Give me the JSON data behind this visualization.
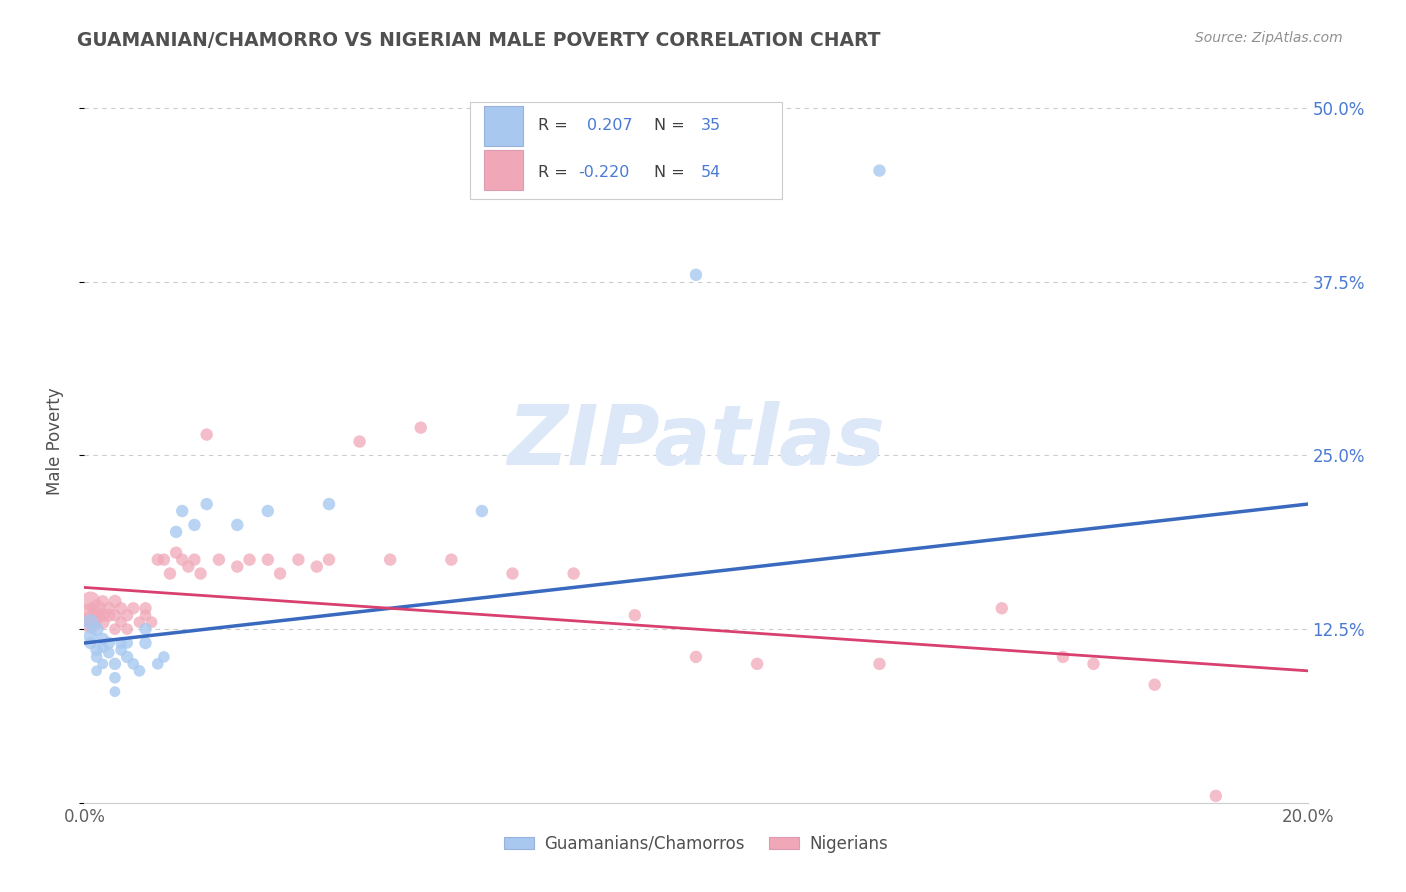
{
  "title": "GUAMANIAN/CHAMORRO VS NIGERIAN MALE POVERTY CORRELATION CHART",
  "source": "Source: ZipAtlas.com",
  "ylabel": "Male Poverty",
  "xlim": [
    0.0,
    0.2
  ],
  "ylim": [
    0.0,
    0.52
  ],
  "yticks": [
    0.0,
    0.125,
    0.25,
    0.375,
    0.5
  ],
  "ytick_labels": [
    "",
    "12.5%",
    "25.0%",
    "37.5%",
    "50.0%"
  ],
  "xticks": [
    0.0,
    0.05,
    0.1,
    0.15,
    0.2
  ],
  "xtick_labels": [
    "0.0%",
    "",
    "",
    "",
    "20.0%"
  ],
  "blue_color": "#a8c8f0",
  "pink_color": "#f0a8b8",
  "line_blue": "#3a6abf",
  "line_pink": "#d94070",
  "legend_text_color": "#4a7ad4",
  "watermark_color": "#dce8f8",
  "grid_color": "#cccccc",
  "background_color": "#ffffff",
  "title_color": "#505050",
  "source_color": "#909090",
  "axis_label_color": "#505050",
  "blue_scatter_x": [
    0.001,
    0.001,
    0.001,
    0.002,
    0.002,
    0.002,
    0.002,
    0.003,
    0.003,
    0.003,
    0.004,
    0.004,
    0.005,
    0.005,
    0.005,
    0.006,
    0.006,
    0.007,
    0.007,
    0.008,
    0.009,
    0.01,
    0.01,
    0.012,
    0.013,
    0.015,
    0.016,
    0.018,
    0.02,
    0.025,
    0.03,
    0.04,
    0.065,
    0.1,
    0.13
  ],
  "blue_scatter_y": [
    0.12,
    0.13,
    0.115,
    0.125,
    0.11,
    0.105,
    0.095,
    0.118,
    0.112,
    0.1,
    0.115,
    0.108,
    0.08,
    0.09,
    0.1,
    0.115,
    0.11,
    0.105,
    0.115,
    0.1,
    0.095,
    0.115,
    0.125,
    0.1,
    0.105,
    0.195,
    0.21,
    0.2,
    0.215,
    0.2,
    0.21,
    0.215,
    0.21,
    0.38,
    0.455
  ],
  "blue_scatter_size": [
    100,
    130,
    80,
    100,
    80,
    70,
    60,
    80,
    70,
    60,
    80,
    70,
    60,
    70,
    80,
    70,
    70,
    80,
    70,
    70,
    70,
    80,
    80,
    70,
    70,
    80,
    80,
    80,
    80,
    80,
    80,
    80,
    80,
    80,
    80
  ],
  "pink_scatter_x": [
    0.001,
    0.001,
    0.001,
    0.002,
    0.002,
    0.003,
    0.003,
    0.003,
    0.004,
    0.004,
    0.005,
    0.005,
    0.005,
    0.006,
    0.006,
    0.007,
    0.007,
    0.008,
    0.009,
    0.01,
    0.01,
    0.011,
    0.012,
    0.013,
    0.014,
    0.015,
    0.016,
    0.017,
    0.018,
    0.019,
    0.02,
    0.022,
    0.025,
    0.027,
    0.03,
    0.032,
    0.035,
    0.038,
    0.04,
    0.045,
    0.05,
    0.055,
    0.06,
    0.07,
    0.08,
    0.09,
    0.1,
    0.11,
    0.13,
    0.15,
    0.16,
    0.165,
    0.175,
    0.185
  ],
  "pink_scatter_y": [
    0.135,
    0.13,
    0.145,
    0.14,
    0.135,
    0.135,
    0.13,
    0.145,
    0.135,
    0.14,
    0.145,
    0.135,
    0.125,
    0.14,
    0.13,
    0.135,
    0.125,
    0.14,
    0.13,
    0.14,
    0.135,
    0.13,
    0.175,
    0.175,
    0.165,
    0.18,
    0.175,
    0.17,
    0.175,
    0.165,
    0.265,
    0.175,
    0.17,
    0.175,
    0.175,
    0.165,
    0.175,
    0.17,
    0.175,
    0.26,
    0.175,
    0.27,
    0.175,
    0.165,
    0.165,
    0.135,
    0.105,
    0.1,
    0.1,
    0.14,
    0.105,
    0.1,
    0.085,
    0.005
  ],
  "pink_scatter_size": [
    300,
    250,
    200,
    160,
    130,
    100,
    100,
    80,
    90,
    80,
    90,
    80,
    70,
    80,
    70,
    80,
    70,
    80,
    70,
    80,
    70,
    70,
    80,
    80,
    80,
    80,
    80,
    80,
    80,
    80,
    80,
    80,
    80,
    80,
    80,
    80,
    80,
    80,
    80,
    80,
    80,
    80,
    80,
    80,
    80,
    80,
    80,
    80,
    80,
    80,
    80,
    80,
    80,
    80
  ]
}
